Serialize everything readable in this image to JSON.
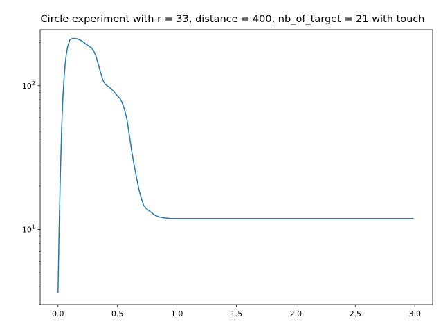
{
  "chart_data": {
    "type": "line",
    "title": "Circle experiment with r = 33, distance = 400, nb_of_target = 21 with touch",
    "xlabel": "",
    "ylabel": "",
    "xlim": [
      -0.15,
      3.15
    ],
    "ylim": [
      3.0,
      245
    ],
    "yscale": "log",
    "grid": false,
    "legend": "none",
    "x_ticks": [
      {
        "value": 0.0,
        "label": "0.0"
      },
      {
        "value": 0.5,
        "label": "0.5"
      },
      {
        "value": 1.0,
        "label": "1.0"
      },
      {
        "value": 1.5,
        "label": "1.5"
      },
      {
        "value": 2.0,
        "label": "2.0"
      },
      {
        "value": 2.5,
        "label": "2.5"
      },
      {
        "value": 3.0,
        "label": "3.0"
      }
    ],
    "y_ticks": [
      {
        "value": 10,
        "base": "10",
        "exp": "1"
      },
      {
        "value": 100,
        "base": "10",
        "exp": "2"
      }
    ],
    "series": [
      {
        "name": "",
        "color": "#1f77b4",
        "x": [
          0.0,
          0.01,
          0.02,
          0.03,
          0.04,
          0.05,
          0.06,
          0.07,
          0.08,
          0.1,
          0.12,
          0.14,
          0.16,
          0.2,
          0.24,
          0.26,
          0.28,
          0.3,
          0.32,
          0.34,
          0.36,
          0.38,
          0.4,
          0.45,
          0.48,
          0.5,
          0.52,
          0.54,
          0.56,
          0.58,
          0.6,
          0.62,
          0.64,
          0.66,
          0.68,
          0.7,
          0.72,
          0.74,
          0.76,
          0.78,
          0.8,
          0.82,
          0.85,
          0.9,
          0.95,
          1.0,
          1.2,
          1.5,
          2.0,
          2.5,
          2.99
        ],
        "y": [
          3.6,
          10.5,
          24,
          48,
          80,
          110,
          140,
          165,
          185,
          208,
          213,
          213,
          212,
          205,
          193,
          188,
          184,
          175,
          160,
          140,
          122,
          108,
          102,
          95,
          89,
          85,
          82,
          76,
          68,
          58,
          45,
          35,
          28,
          23,
          19,
          16.5,
          14.7,
          14.0,
          13.6,
          13.2,
          12.8,
          12.5,
          12.2,
          12.0,
          11.9,
          11.9,
          11.9,
          11.9,
          11.9,
          11.9,
          11.9
        ]
      }
    ]
  }
}
